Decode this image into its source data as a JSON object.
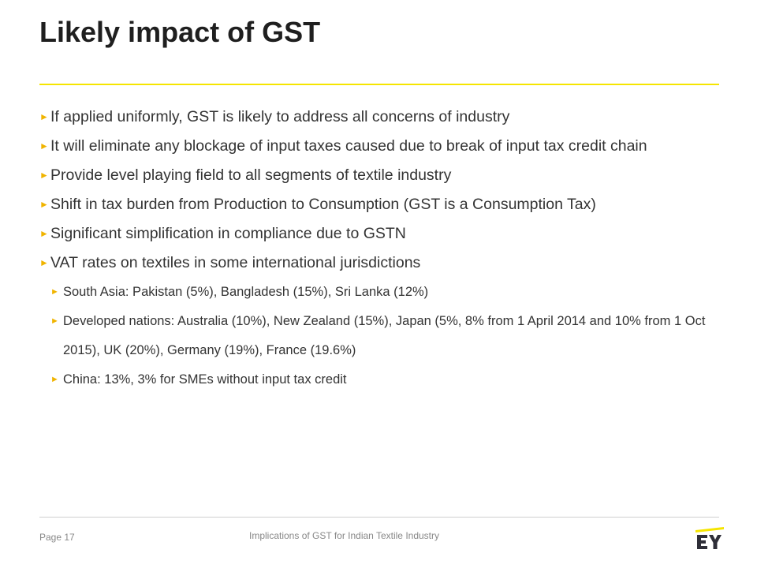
{
  "slide": {
    "title": "Likely impact of GST"
  },
  "bullets": [
    {
      "text": "If applied uniformly, GST is likely to address all concerns of industry"
    },
    {
      "text": "It will eliminate any blockage of input taxes caused due to break of input tax credit chain"
    },
    {
      "text": "Provide level playing field to all segments of textile industry"
    },
    {
      "text": "Shift in tax burden from Production to Consumption (GST is a Consumption Tax)"
    },
    {
      "text": "Significant simplification in compliance due to GSTN"
    },
    {
      "text": "VAT rates on textiles in some international jurisdictions"
    }
  ],
  "sub_bullets": [
    {
      "text": "South Asia: Pakistan (5%), Bangladesh (15%), Sri Lanka (12%)"
    },
    {
      "text": "Developed nations: Australia (10%), New Zealand (15%), Japan (5%, 8% from 1 April 2014 and 10% from 1 Oct 2015), UK (20%), Germany (19%), France (19.6%)"
    },
    {
      "text": "China: 13%, 3% for SMEs without input tax credit"
    }
  ],
  "bullet_glyph": "►",
  "footer": {
    "page_label": "Page 17",
    "title": "Implications of GST for Indian Textile Industry",
    "logo_text": "EY"
  },
  "colors": {
    "accent_yellow": "#f5e500",
    "bullet_arrow": "#f0b400",
    "body_text": "#333333"
  }
}
